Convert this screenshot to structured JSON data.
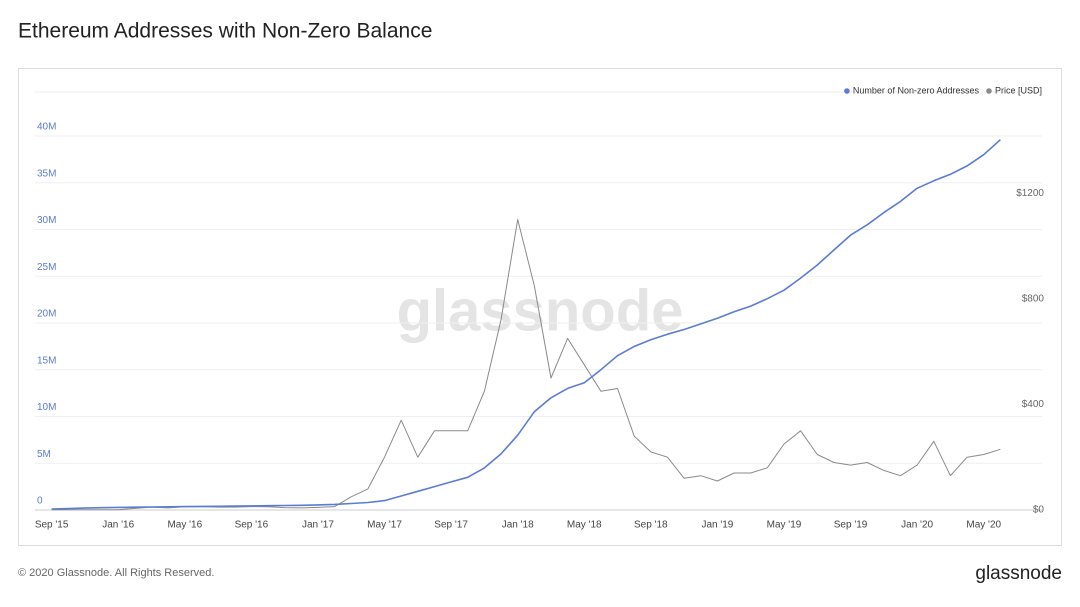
{
  "chart_data": {
    "type": "line",
    "title": "Ethereum Addresses with Non-Zero Balance",
    "x": [
      "2015-09",
      "2015-10",
      "2015-11",
      "2015-12",
      "2016-01",
      "2016-02",
      "2016-03",
      "2016-04",
      "2016-05",
      "2016-06",
      "2016-07",
      "2016-08",
      "2016-09",
      "2016-10",
      "2016-11",
      "2016-12",
      "2017-01",
      "2017-02",
      "2017-03",
      "2017-04",
      "2017-05",
      "2017-06",
      "2017-07",
      "2017-08",
      "2017-09",
      "2017-10",
      "2017-11",
      "2017-12",
      "2018-01",
      "2018-02",
      "2018-03",
      "2018-04",
      "2018-05",
      "2018-06",
      "2018-07",
      "2018-08",
      "2018-09",
      "2018-10",
      "2018-11",
      "2018-12",
      "2019-01",
      "2019-02",
      "2019-03",
      "2019-04",
      "2019-05",
      "2019-06",
      "2019-07",
      "2019-08",
      "2019-09",
      "2019-10",
      "2019-11",
      "2019-12",
      "2020-01",
      "2020-02",
      "2020-03",
      "2020-04",
      "2020-05",
      "2020-06"
    ],
    "xlim": [
      "2015-08",
      "2020-07"
    ],
    "xticks": [
      {
        "value": "2015-09",
        "label": "Sep '15"
      },
      {
        "value": "2016-01",
        "label": "Jan '16"
      },
      {
        "value": "2016-05",
        "label": "May '16"
      },
      {
        "value": "2016-09",
        "label": "Sep '16"
      },
      {
        "value": "2017-01",
        "label": "Jan '17"
      },
      {
        "value": "2017-05",
        "label": "May '17"
      },
      {
        "value": "2017-09",
        "label": "Sep '17"
      },
      {
        "value": "2018-01",
        "label": "Jan '18"
      },
      {
        "value": "2018-05",
        "label": "May '18"
      },
      {
        "value": "2018-09",
        "label": "Sep '18"
      },
      {
        "value": "2019-01",
        "label": "Jan '19"
      },
      {
        "value": "2019-05",
        "label": "May '19"
      },
      {
        "value": "2019-09",
        "label": "Sep '19"
      },
      {
        "value": "2020-01",
        "label": "Jan '20"
      },
      {
        "value": "2020-05",
        "label": "May '20"
      }
    ],
    "ylim": [
      0,
      44700000
    ],
    "yticks": [
      0,
      {
        "value": 5000000,
        "label": "5M"
      },
      {
        "value": 10000000,
        "label": "10M"
      },
      {
        "value": 15000000,
        "label": "15M"
      },
      {
        "value": 20000000,
        "label": "20M"
      },
      {
        "value": 25000000,
        "label": "25M"
      },
      {
        "value": 30000000,
        "label": "30M"
      },
      {
        "value": 35000000,
        "label": "35M"
      },
      {
        "value": 40000000,
        "label": "40M"
      }
    ],
    "y2lim": [
      0,
      1583
    ],
    "y2ticks": [
      {
        "value": 0,
        "label": "$0"
      },
      {
        "value": 400,
        "label": "$400"
      },
      {
        "value": 800,
        "label": "$800"
      },
      {
        "value": 1200,
        "label": "$1200"
      }
    ],
    "grid": true,
    "legend": "top-right",
    "series": [
      {
        "name": "Number of Non-zero Addresses",
        "color": "#5b7bd5",
        "values": [
          100000,
          150000,
          200000,
          250000,
          280000,
          300000,
          320000,
          340000,
          360000,
          380000,
          400000,
          420000,
          440000,
          460000,
          480000,
          500000,
          550000,
          600000,
          700000,
          800000,
          1000000,
          1500000,
          2000000,
          2500000,
          3000000,
          3500000,
          4500000,
          6000000,
          8000000,
          10500000,
          12000000,
          13000000,
          13600000,
          15000000,
          16500000,
          17500000,
          18200000,
          18800000,
          19300000,
          19900000,
          20500000,
          21200000,
          21800000,
          22600000,
          23500000,
          24800000,
          26200000,
          27800000,
          29400000,
          30500000,
          31800000,
          33000000,
          34400000,
          35200000,
          35900000,
          36800000,
          38000000,
          39600000
        ]
      },
      {
        "name": "Price [USD]",
        "color": "#8a8a8a",
        "axis": "y2",
        "values": [
          1,
          0.6,
          0.9,
          0.9,
          1,
          6,
          11,
          8,
          12,
          13,
          11,
          11,
          13,
          12,
          9,
          8,
          10,
          13,
          50,
          80,
          200,
          340,
          200,
          300,
          300,
          300,
          450,
          720,
          1100,
          850,
          500,
          650,
          550,
          450,
          460,
          280,
          220,
          200,
          120,
          130,
          110,
          140,
          140,
          160,
          250,
          300,
          210,
          180,
          170,
          180,
          150,
          130,
          170,
          260,
          130,
          200,
          210,
          230
        ]
      }
    ]
  },
  "watermark": "glassnode",
  "footer": {
    "copyright": "© 2020 Glassnode. All Rights Reserved.",
    "logo": "glassnode"
  }
}
